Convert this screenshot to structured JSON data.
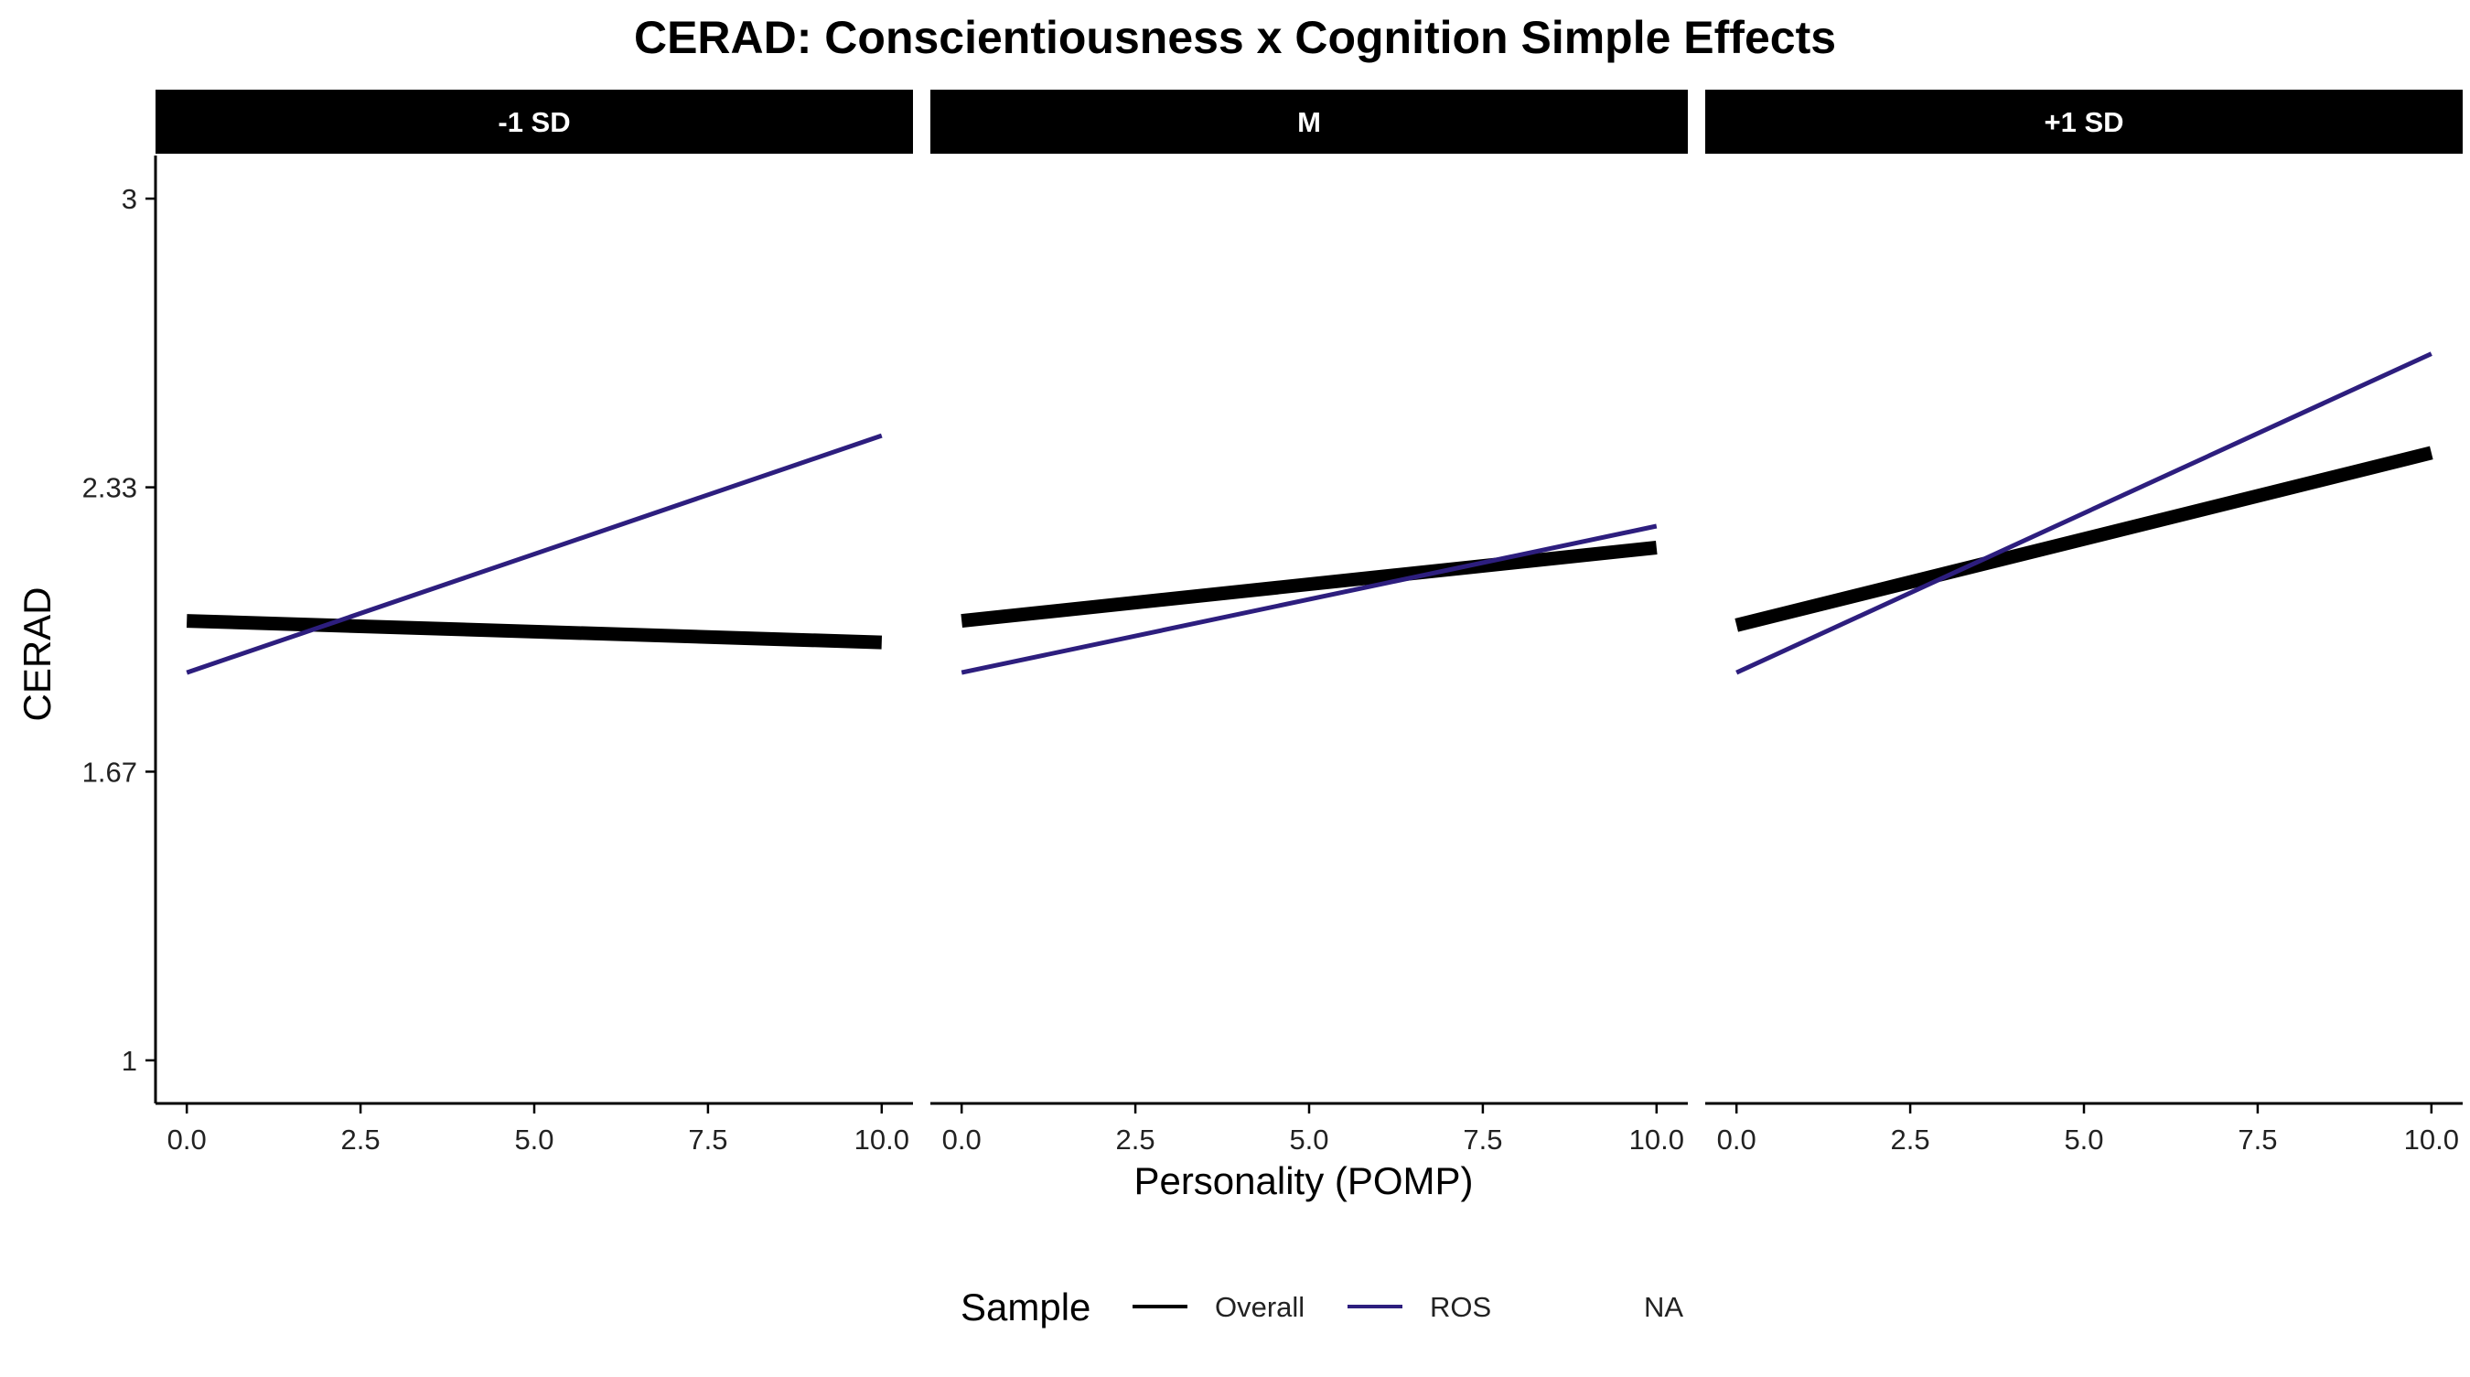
{
  "chart_data": {
    "type": "line",
    "title": "CERAD: Conscientiousness x Cognition Simple Effects",
    "xlabel": "Personality (POMP)",
    "ylabel": "CERAD",
    "xlim": [
      -0.45,
      10.45
    ],
    "ylim": [
      0.9,
      3.1
    ],
    "x_ticks": [
      0,
      2.5,
      5,
      7.5,
      10
    ],
    "x_tick_labels": [
      "0.0",
      "2.5",
      "5.0",
      "7.5",
      "10.0"
    ],
    "y_ticks": [
      1,
      1.67,
      2.33,
      3
    ],
    "y_tick_labels": [
      "1",
      "1.67",
      "2.33",
      "3"
    ],
    "grid": false,
    "legend": {
      "title": "Sample",
      "position": "bottom",
      "entries": [
        {
          "label": "Overall",
          "color": "#000000",
          "line": true
        },
        {
          "label": "ROS",
          "color": "#2d1e7e",
          "line": true
        },
        {
          "label": "NA",
          "color": "#ffffff",
          "line": false
        }
      ]
    },
    "panels": [
      {
        "label": "-1 SD",
        "series": [
          {
            "name": "Overall",
            "color": "#000000",
            "x": [
              0,
              10
            ],
            "y": [
              2.02,
              1.97
            ]
          },
          {
            "name": "ROS",
            "color": "#2d1e7e",
            "x": [
              0,
              10
            ],
            "y": [
              1.9,
              2.45
            ]
          }
        ]
      },
      {
        "label": "M",
        "series": [
          {
            "name": "Overall",
            "color": "#000000",
            "x": [
              0,
              10
            ],
            "y": [
              2.02,
              2.19
            ]
          },
          {
            "name": "ROS",
            "color": "#2d1e7e",
            "x": [
              0,
              10
            ],
            "y": [
              1.9,
              2.24
            ]
          }
        ]
      },
      {
        "label": "+1 SD",
        "series": [
          {
            "name": "Overall",
            "color": "#000000",
            "x": [
              0,
              10
            ],
            "y": [
              2.01,
              2.41
            ]
          },
          {
            "name": "ROS",
            "color": "#2d1e7e",
            "x": [
              0,
              10
            ],
            "y": [
              1.9,
              2.64
            ]
          }
        ]
      }
    ]
  }
}
